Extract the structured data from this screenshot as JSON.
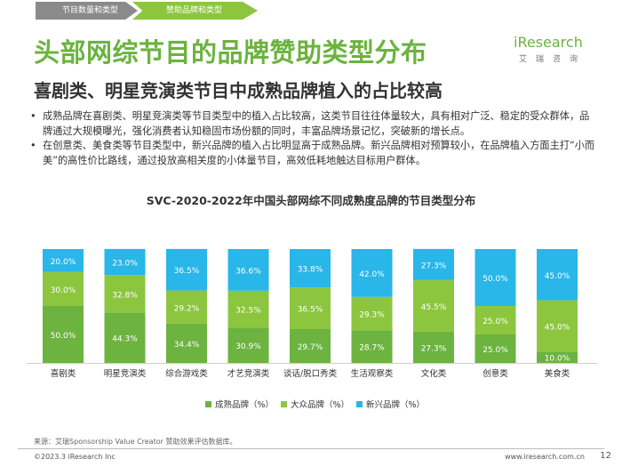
{
  "header": {
    "tabs": [
      {
        "label": "节目数量和类型"
      },
      {
        "label": "赞助品牌和类型"
      }
    ],
    "title": "头部网综节目的品牌赞助类型分布",
    "subtitle": "喜剧类、明星竞演类节目中成熟品牌植入的占比较高",
    "logo": {
      "main": "iResearch",
      "sub": "艾瑞咨询"
    }
  },
  "bullets": [
    {
      "marker": "•",
      "text": "成熟品牌在喜剧类、明星竞演类等节目类型中的植入占比较高，这类节目往往体量较大，具有相对广泛、稳定的受众群体，品牌通过大规模曝光，强化消费者认知稳固市场份额的同时，丰富品牌场景记忆，突破新的增长点。"
    },
    {
      "marker": "•",
      "text": "在创意类、美食类等节目类型中，新兴品牌的植入占比明显高于成熟品牌。新兴品牌相对预算较小，在品牌植入方面主打“小而美”的高性价比路线，通过投放高相关度的小体量节目，高效低耗地触达目标用户群体。"
    }
  ],
  "chart_data": {
    "type": "bar",
    "stacked": true,
    "title": "SVC-2020-2022年中国头部网综不同成熟度品牌的节目类型分布",
    "categories": [
      "喜剧类",
      "明星竞演类",
      "综合游戏类",
      "才艺竞演类",
      "谈话/脱口秀类",
      "生活观察类",
      "文化类",
      "创意类",
      "美食类"
    ],
    "series": [
      {
        "name": "成熟品牌（%）",
        "color": "#6cb33f",
        "values": [
          50.0,
          44.3,
          34.4,
          30.9,
          29.7,
          28.7,
          27.3,
          25.0,
          10.0
        ],
        "labels": [
          "50.0%",
          "44.3%",
          "34.4%",
          "30.9%",
          "29.7%",
          "28.7%",
          "27.3%",
          "25.0%",
          "10.0%"
        ]
      },
      {
        "name": "大众品牌（%）",
        "color": "#8cc63f",
        "values": [
          30.0,
          32.8,
          29.2,
          32.5,
          36.5,
          29.3,
          45.5,
          25.0,
          45.0
        ],
        "labels": [
          "30.0%",
          "32.8%",
          "29.2%",
          "32.5%",
          "36.5%",
          "29.3%",
          "45.5%",
          "25.0%",
          "45.0%"
        ]
      },
      {
        "name": "新兴品牌（%）",
        "color": "#29b6e8",
        "values": [
          20.0,
          23.0,
          36.5,
          36.6,
          33.8,
          42.0,
          27.3,
          50.0,
          45.0
        ],
        "labels": [
          "20.0%",
          "23.0%",
          "36.5%",
          "36.6%",
          "33.8%",
          "42.0%",
          "27.3%",
          "50.0%",
          "45.0%"
        ]
      }
    ],
    "ylim": [
      0,
      100
    ],
    "legend_position": "bottom"
  },
  "footer": {
    "source": "来源：艾瑞Sponsorship Value Creator 赞助效果评估数据库。",
    "copyright": "©2023.3 iResearch Inc",
    "url": "www.iresearch.com.cn",
    "page": "12"
  }
}
